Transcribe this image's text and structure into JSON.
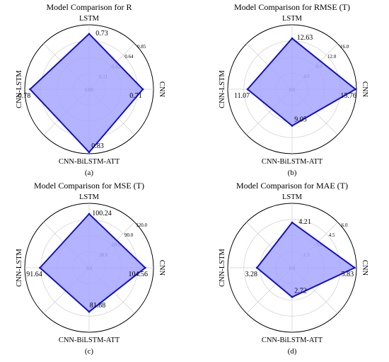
{
  "chart_data": [
    {
      "type": "radar",
      "title": "Model Comparison for R",
      "panel_label": "(a)",
      "categories": [
        "LSTM",
        "CNN",
        "CNN-BiLSTM-ATT",
        "CNN-LSTM"
      ],
      "values": [
        0.73,
        0.71,
        0.83,
        0.78
      ],
      "value_labels": [
        "0.73",
        "0.71",
        "0.83",
        "0.78"
      ],
      "rmax": 0.85,
      "ticks": [
        0.0,
        0.21,
        0.42,
        0.64,
        0.85
      ],
      "tick_labels": [
        "0.00",
        "0.21",
        "0.42",
        "0.64",
        "0.85"
      ],
      "color": "#1010c8",
      "fill": "#a6a6ff"
    },
    {
      "type": "radar",
      "title": "Model Comparison for RMSE (T)",
      "panel_label": "(b)",
      "categories": [
        "LSTM",
        "CNN",
        "CNN-BiLSTM-ATT",
        "CNN-LSTM"
      ],
      "values": [
        12.63,
        15.76,
        9.05,
        11.07
      ],
      "value_labels": [
        "12.63",
        "15.76",
        "9.05",
        "11.07"
      ],
      "rmax": 16.0,
      "ticks": [
        0.0,
        4.0,
        8.0,
        12.0,
        16.0
      ],
      "tick_labels": [
        "0.0",
        "4.0",
        "8.0",
        "12.0",
        "16.0"
      ],
      "color": "#1010c8",
      "fill": "#a6a6ff"
    },
    {
      "type": "radar",
      "title": "Model Comparison for MSE (T)",
      "panel_label": "(c)",
      "categories": [
        "LSTM",
        "CNN",
        "CNN-BiLSTM-ATT",
        "CNN-LSTM"
      ],
      "values": [
        100.24,
        104.56,
        81.88,
        91.64
      ],
      "value_labels": [
        "100.24",
        "104.56",
        "81.88",
        "91.64"
      ],
      "rmax": 120.0,
      "ticks": [
        0.0,
        30.0,
        60.0,
        90.0,
        120.0
      ],
      "tick_labels": [
        "0.0",
        "30.0",
        "60.0",
        "90.0",
        "120.0"
      ],
      "color": "#1010c8",
      "fill": "#a6a6ff"
    },
    {
      "type": "radar",
      "title": "Model Comparison for MAE (T)",
      "panel_label": "(d)",
      "categories": [
        "LSTM",
        "CNN",
        "CNN-BiLSTM-ATT",
        "CNN-LSTM"
      ],
      "values": [
        4.21,
        5.83,
        2.72,
        3.28
      ],
      "value_labels": [
        "4.21",
        "5.83",
        "2.72",
        "3.28"
      ],
      "rmax": 6.0,
      "ticks": [
        0.0,
        1.5,
        3.0,
        4.5,
        6.0
      ],
      "tick_labels": [
        "0.0",
        "1.5",
        "3.0",
        "4.5",
        "6.0"
      ],
      "color": "#1010c8",
      "fill": "#a6a6ff"
    }
  ]
}
